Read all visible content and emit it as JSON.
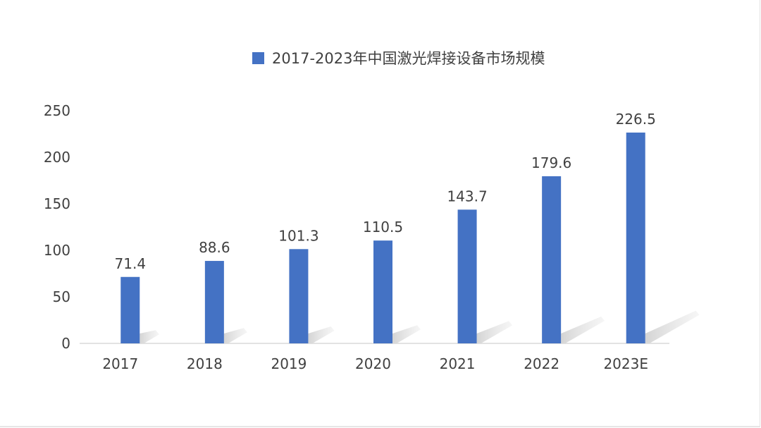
{
  "chart_data": {
    "type": "bar",
    "legend": {
      "label": "2017-2023年中国激光焊接设备市场规模",
      "placement": "top-center"
    },
    "categories": [
      "2017",
      "2018",
      "2019",
      "2020",
      "2021",
      "2022",
      "2023E"
    ],
    "series": [
      {
        "name": "2017-2023年中国激光焊接设备市场规模",
        "values": [
          71.4,
          88.6,
          101.3,
          110.5,
          143.7,
          179.6,
          226.5
        ],
        "value_labels": [
          "71.4",
          "88.6",
          "101.3",
          "110.5",
          "143.7",
          "179.6",
          "226.5"
        ]
      }
    ],
    "ylim": [
      0,
      250
    ],
    "yticks": [
      "0",
      "50",
      "100",
      "150",
      "200",
      "250"
    ],
    "ytick_values": [
      0,
      50,
      100,
      150,
      200,
      250
    ],
    "grid": false,
    "colors": {
      "bar": "#4472C4",
      "shadow": "#d9d9d9",
      "text": "#404040",
      "axis": "#d9d9d9"
    }
  }
}
